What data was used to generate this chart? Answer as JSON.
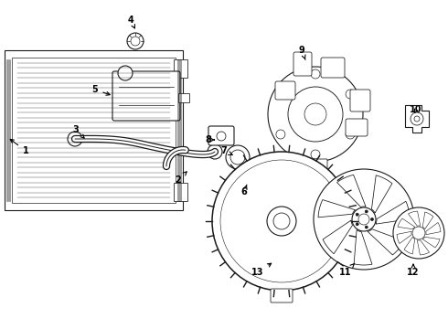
{
  "bg_color": "#ffffff",
  "line_color": "#1a1a1a",
  "callouts": [
    [
      "1",
      28,
      195,
      8,
      210
    ],
    [
      "2",
      195,
      163,
      205,
      173
    ],
    [
      "3",
      83,
      218,
      93,
      208
    ],
    [
      "4",
      143,
      338,
      148,
      328
    ],
    [
      "5",
      104,
      262,
      124,
      255
    ],
    [
      "6",
      267,
      150,
      270,
      158
    ],
    [
      "7",
      245,
      195,
      255,
      190
    ],
    [
      "8",
      228,
      207,
      235,
      207
    ],
    [
      "9",
      330,
      305,
      335,
      292
    ],
    [
      "10",
      455,
      240,
      452,
      233
    ],
    [
      "11",
      378,
      62,
      390,
      74
    ],
    [
      "12",
      452,
      62,
      452,
      72
    ],
    [
      "13",
      282,
      62,
      300,
      74
    ]
  ]
}
